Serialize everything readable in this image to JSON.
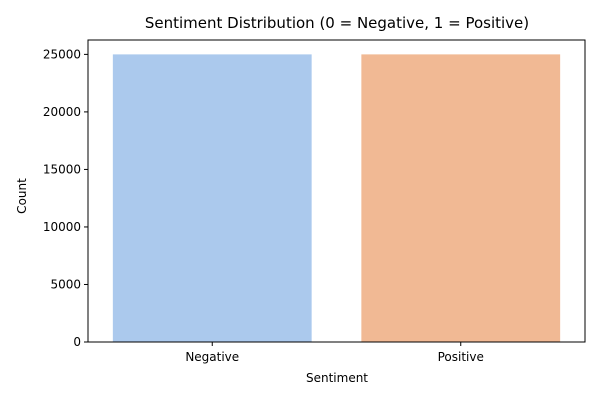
{
  "chart_data": {
    "type": "bar",
    "title": "Sentiment Distribution (0 = Negative, 1 = Positive)",
    "xlabel": "Sentiment",
    "ylabel": "Count",
    "categories": [
      "Negative",
      "Positive"
    ],
    "values": [
      25000,
      25000
    ],
    "ylim": [
      0,
      26250
    ],
    "yticks": [
      0,
      5000,
      10000,
      15000,
      20000,
      25000
    ],
    "colors": [
      "#abc9ed",
      "#f1b994"
    ],
    "grid": false,
    "legend": "none"
  }
}
